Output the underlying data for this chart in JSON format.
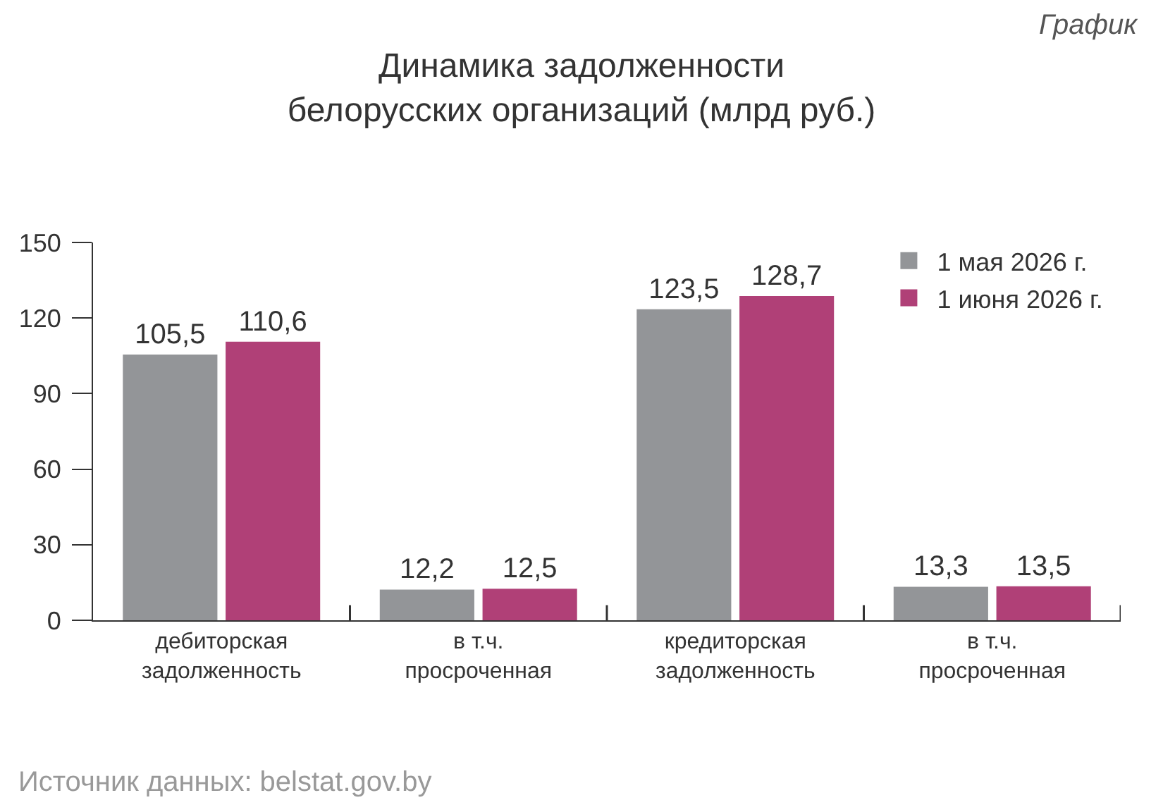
{
  "chart_data": {
    "type": "bar",
    "title": "Динамика задолженности\nбелорусских организаций (млрд руб.)",
    "categories": [
      "дебиторская\nзадолженность",
      "в т.ч.\nпросроченная",
      "кредиторская\nзадолженность",
      "в т.ч.\nпросроченная"
    ],
    "series": [
      {
        "name": "1 мая 2026 г.",
        "color": "#939598",
        "values": [
          105.5,
          12.2,
          123.5,
          13.3
        ],
        "value_labels": [
          "105,5",
          "12,2",
          "123,5",
          "13,3"
        ]
      },
      {
        "name": "1 июня 2026 г.",
        "color": "#b04077",
        "values": [
          110.6,
          12.5,
          128.7,
          13.5
        ],
        "value_labels": [
          "110,6",
          "12,5",
          "128,7",
          "13,5"
        ]
      }
    ],
    "ylim": [
      0,
      150
    ],
    "yticks": [
      0,
      30,
      60,
      90,
      120,
      150
    ],
    "legend": "top right",
    "annotations": [
      "График",
      "Источник данных: belstat.gov.by"
    ]
  }
}
